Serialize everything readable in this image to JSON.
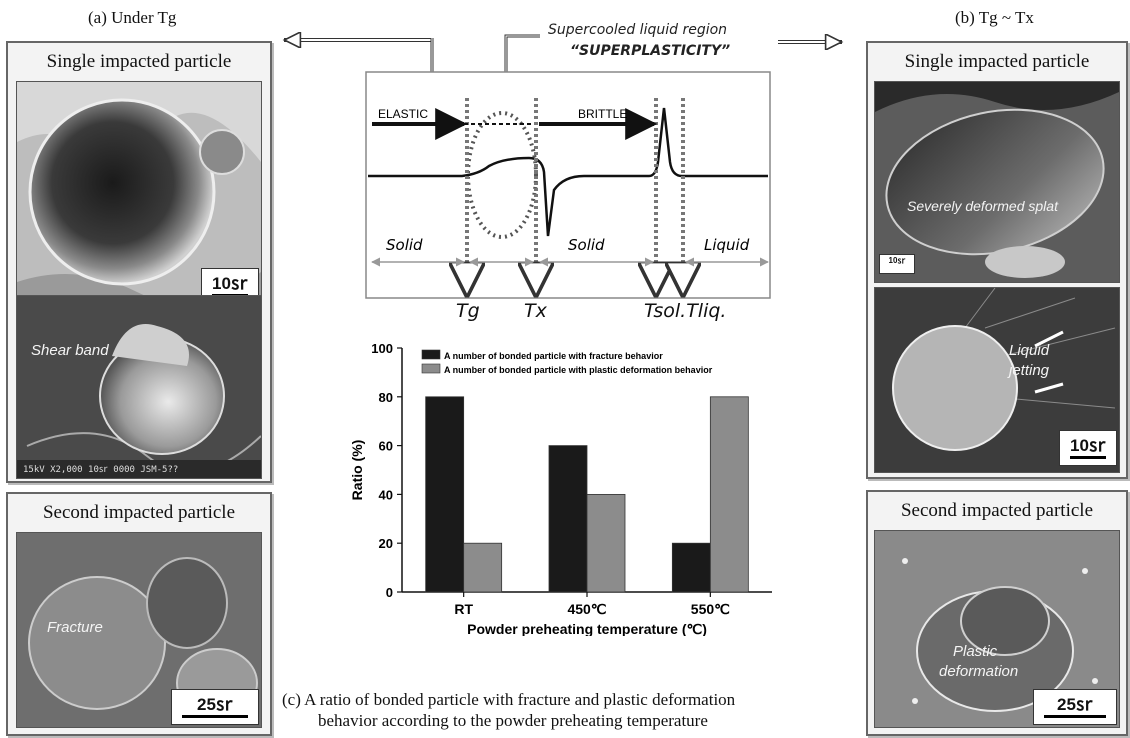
{
  "headers": {
    "left": "(a) Under Tg",
    "right": "(b) Tg ~ Tx",
    "center_line1": "Supercooled liquid region",
    "center_line2": "“SUPERPLASTICITY”"
  },
  "left_panels": {
    "single_title": "Single impacted particle",
    "single_scale": "10㏛",
    "shear_label": "Shear band",
    "sem_footer": "15kV  X2,000  10㏛  0000  JSM-5??",
    "second_title": "Second impacted particle",
    "fracture_label": "Fracture",
    "second_scale": "25㏛"
  },
  "right_panels": {
    "single_title": "Single impacted particle",
    "splat_label": "Severely deformed splat",
    "small_scale": "10㏛",
    "jetting_label_1": "Liquid",
    "jetting_label_2": "jetting",
    "jetting_scale": "10㏛",
    "second_title": "Second impacted particle",
    "plastic_label_1": "Plastic",
    "plastic_label_2": "deformation",
    "second_scale": "25㏛"
  },
  "dsc": {
    "elastic": "ELASTIC",
    "brittle": "BRITTLE",
    "solid1": "Solid",
    "solid2": "Solid",
    "liquid": "Liquid",
    "tg": "Tg",
    "tx": "Tx",
    "tsol": "Tsol.",
    "tliq": "Tliq."
  },
  "chart_data": {
    "type": "bar",
    "categories": [
      "RT",
      "450℃",
      "550℃"
    ],
    "series": [
      {
        "name": "A number of bonded particle with fracture behavior",
        "values": [
          80,
          60,
          20
        ],
        "color": "#1a1a1a"
      },
      {
        "name": "A number of bonded particle with plastic deformation behavior",
        "values": [
          20,
          40,
          80
        ],
        "color": "#8c8c8c"
      }
    ],
    "xlabel": "Powder preheating temperature (℃)",
    "ylabel": "Ratio (%)",
    "ylim": [
      0,
      100
    ],
    "yticks": [
      "0",
      "20",
      "40",
      "60",
      "80",
      "100"
    ],
    "legend": "top-left"
  },
  "caption": {
    "line1": "(c) A ratio of bonded particle with fracture and plastic deformation",
    "line2": "behavior according to the powder preheating temperature"
  }
}
